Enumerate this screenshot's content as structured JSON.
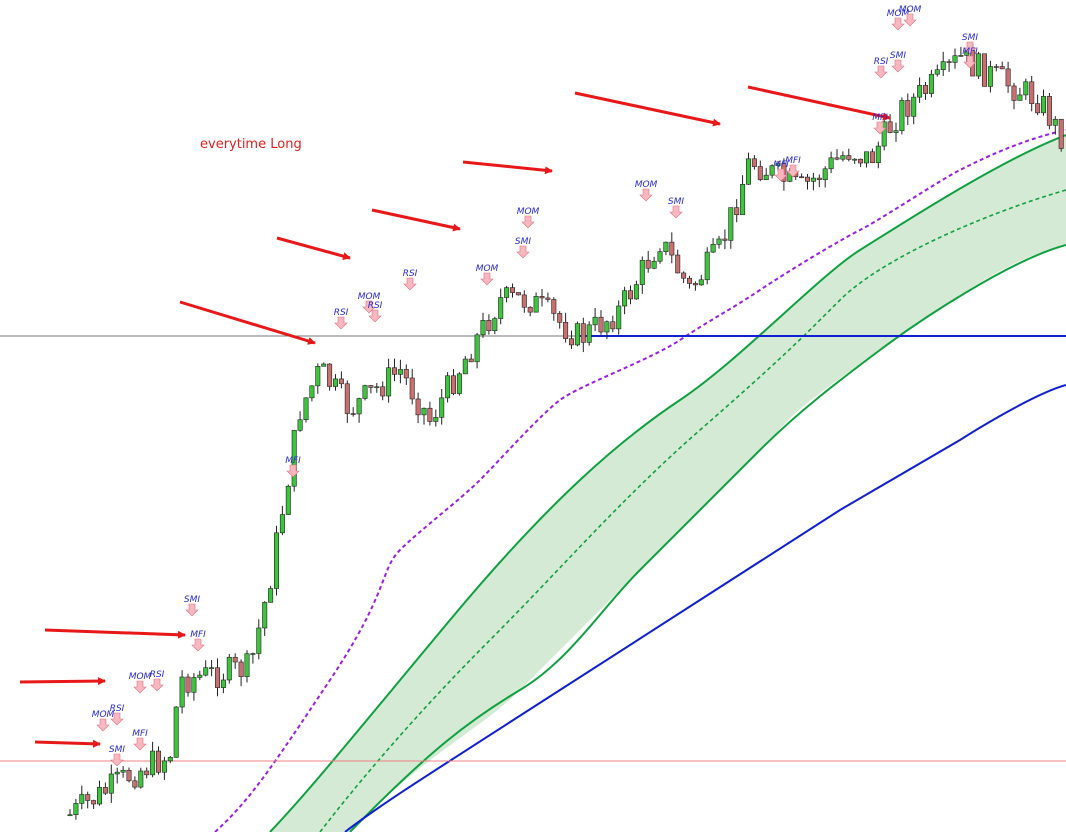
{
  "annotation": "everytime Long",
  "signals": [
    "SMI",
    "MFI",
    "MOM",
    "RSI",
    "MOM",
    "RSI",
    "MFI",
    "SMI",
    "MFI",
    "RSI",
    "MOM",
    "RSI",
    "RSI",
    "MOM",
    "SMI",
    "MOM",
    "MOM",
    "SMI",
    "MFI",
    "MFI",
    "RSI",
    "SMI",
    "MFI",
    "MOM",
    "MOM",
    "SMI",
    "MFI"
  ]
}
